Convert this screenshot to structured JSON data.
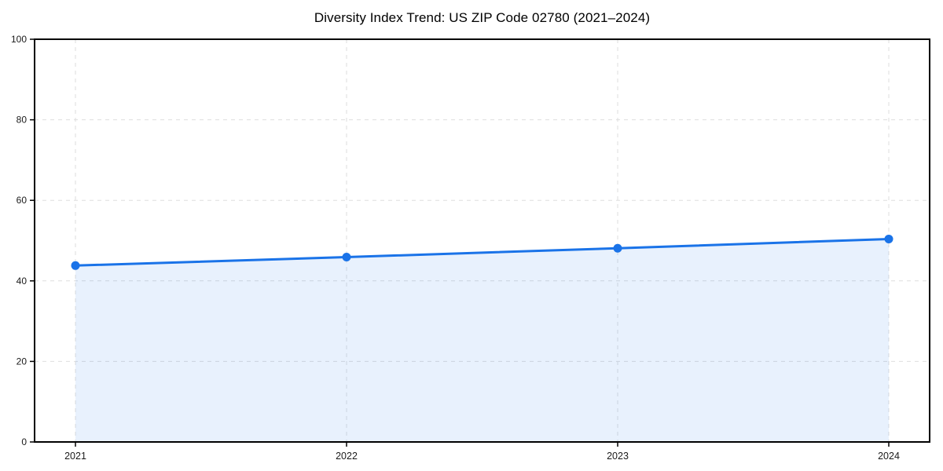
{
  "page": {
    "background": "#ffffff"
  },
  "chart_data": {
    "type": "area",
    "title": "Diversity Index Trend: US ZIP Code 02780 (2021–2024)",
    "x": [
      2021,
      2022,
      2023,
      2024
    ],
    "values": [
      43.8,
      45.9,
      48.1,
      50.4
    ],
    "xlabel": "",
    "ylabel": "",
    "ylim": [
      0,
      100
    ],
    "yticks": [
      0,
      20,
      40,
      60,
      80,
      100
    ],
    "grid": true,
    "grid_style": "dashed",
    "legend": false,
    "markers": true,
    "line_color": "#1a73e8",
    "fill_color": "#1a73e8",
    "fill_opacity": 0.1,
    "grid_color": "#dedede",
    "axis_color": "#000000",
    "text_color": "#1a1a1a"
  }
}
